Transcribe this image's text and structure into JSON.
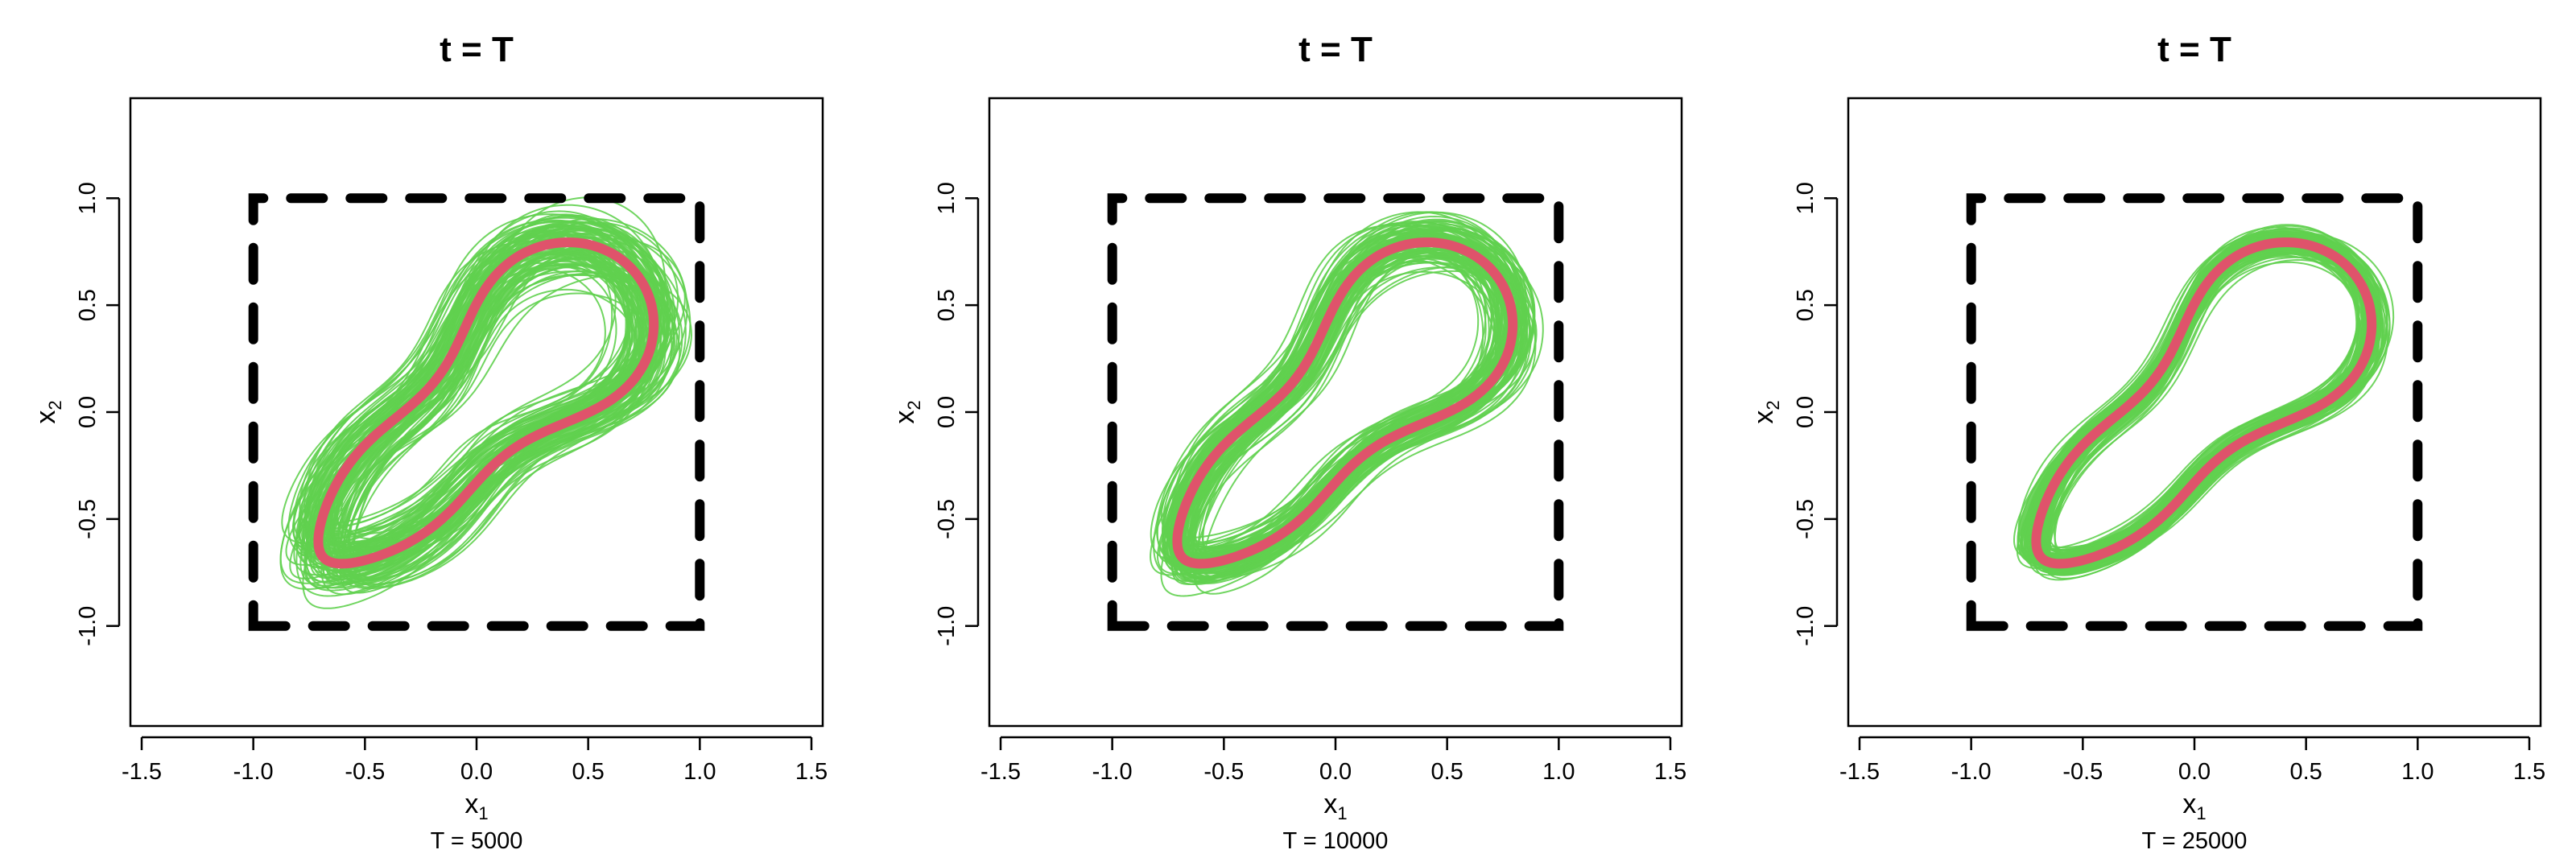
{
  "chart_data": [
    {
      "type": "line",
      "title": "t = T",
      "xlabel": "x",
      "xlabel_sub": "1",
      "ylabel": "x",
      "ylabel_sub": "2",
      "caption": "T = 5000",
      "xlim": [
        -1.5,
        1.5
      ],
      "ylim": [
        -1.4,
        1.4
      ],
      "x_ticks": [
        "-1.5",
        "-1.0",
        "-0.5",
        "0.0",
        "0.5",
        "1.0",
        "1.5"
      ],
      "y_ticks": [
        "-1.0",
        "-0.5",
        "0.0",
        "0.5",
        "1.0"
      ],
      "grid": false,
      "square_corners": [
        [
          -1,
          -1
        ],
        [
          1,
          -1
        ],
        [
          1,
          1
        ],
        [
          -1,
          1
        ]
      ],
      "square_color": "#000000",
      "reference_curve_color": "#df536b",
      "ensemble_color": "#61d04f",
      "ensemble_count": 120,
      "ensemble_spread": 0.1
    },
    {
      "type": "line",
      "title": "t = T",
      "xlabel": "x",
      "xlabel_sub": "1",
      "ylabel": "x",
      "ylabel_sub": "2",
      "caption": "T = 10000",
      "xlim": [
        -1.5,
        1.5
      ],
      "ylim": [
        -1.4,
        1.4
      ],
      "x_ticks": [
        "-1.5",
        "-1.0",
        "-0.5",
        "0.0",
        "0.5",
        "1.0",
        "1.5"
      ],
      "y_ticks": [
        "-1.0",
        "-0.5",
        "0.0",
        "0.5",
        "1.0"
      ],
      "grid": false,
      "square_corners": [
        [
          -1,
          -1
        ],
        [
          1,
          -1
        ],
        [
          1,
          1
        ],
        [
          -1,
          1
        ]
      ],
      "square_color": "#000000",
      "reference_curve_color": "#df536b",
      "ensemble_color": "#61d04f",
      "ensemble_count": 120,
      "ensemble_spread": 0.075
    },
    {
      "type": "line",
      "title": "t = T",
      "xlabel": "x",
      "xlabel_sub": "1",
      "ylabel": "x",
      "ylabel_sub": "2",
      "caption": "T = 25000",
      "xlim": [
        -1.5,
        1.5
      ],
      "ylim": [
        -1.4,
        1.4
      ],
      "x_ticks": [
        "-1.5",
        "-1.0",
        "-0.5",
        "0.0",
        "0.5",
        "1.0",
        "1.5"
      ],
      "y_ticks": [
        "-1.0",
        "-0.5",
        "0.0",
        "0.5",
        "1.0"
      ],
      "grid": false,
      "square_corners": [
        [
          -1,
          -1
        ],
        [
          1,
          -1
        ],
        [
          1,
          1
        ],
        [
          -1,
          1
        ]
      ],
      "square_color": "#000000",
      "reference_curve_color": "#df536b",
      "ensemble_color": "#61d04f",
      "ensemble_count": 120,
      "ensemble_spread": 0.05
    }
  ]
}
